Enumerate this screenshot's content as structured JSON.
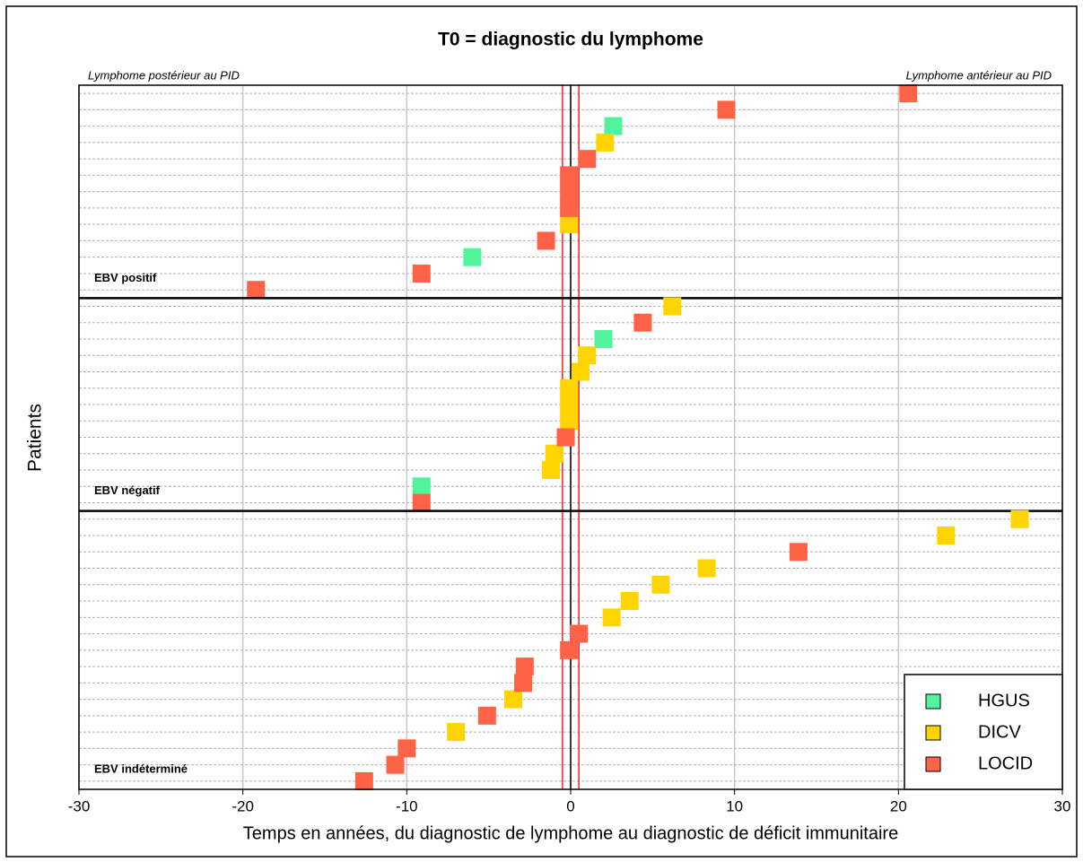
{
  "chart_data": {
    "type": "dot",
    "title": "T0 = diagnostic du lymphome",
    "xlabel": "Temps en années, du diagnostic de lymphome au diagnostic de déficit immunitaire",
    "ylabel": "Patients",
    "annotations": [
      "Lymphome postérieur au PID",
      "Lymphome antérieur au PID"
    ],
    "xlim": [
      -30,
      30
    ],
    "xticks": [
      -30,
      -20,
      -10,
      0,
      10,
      20,
      30
    ],
    "grid": true,
    "legend": "lower right",
    "vlines": [
      {
        "value": 0,
        "color": "#000000"
      },
      {
        "value": -0.5,
        "color": "#e8231e"
      },
      {
        "value": 0.5,
        "color": "#e8231e"
      }
    ],
    "series": [
      {
        "name": "HGUS",
        "color": "#52f49b"
      },
      {
        "name": "DICV",
        "color": "#ffd400"
      },
      {
        "name": "LOCID",
        "color": "#ff6347"
      }
    ],
    "groups": [
      {
        "label": "EBV positif",
        "values": [
          [
            null,
            null,
            2.6,
            null,
            null,
            null,
            null,
            null,
            null,
            null,
            -6.0,
            null,
            null
          ],
          [
            null,
            null,
            null,
            2.1,
            null,
            null,
            null,
            null,
            -0.1,
            null,
            null,
            null,
            null
          ],
          [
            20.6,
            9.5,
            null,
            null,
            1.0,
            -0.1,
            -0.1,
            -0.1,
            null,
            -1.5,
            null,
            -9.1,
            -19.2
          ]
        ]
      },
      {
        "label": "EBV négatif",
        "values": [
          [
            null,
            null,
            2.0,
            null,
            null,
            null,
            null,
            null,
            null,
            null,
            null,
            -9.1,
            null
          ],
          [
            6.2,
            null,
            null,
            1.0,
            0.6,
            -0.1,
            -0.1,
            -0.1,
            null,
            -1.0,
            -1.2,
            null,
            null
          ],
          [
            null,
            4.4,
            null,
            null,
            null,
            null,
            null,
            null,
            -0.3,
            null,
            null,
            null,
            -9.1
          ]
        ]
      },
      {
        "label": "EBV indéterminé",
        "values": [
          [
            null,
            null,
            null,
            null,
            null,
            null,
            null,
            null,
            null,
            null,
            null,
            null,
            null,
            null,
            null,
            null,
            null
          ],
          [
            27.4,
            22.9,
            null,
            8.3,
            5.5,
            3.6,
            2.5,
            null,
            null,
            null,
            null,
            -3.5,
            null,
            -7.0,
            null,
            null,
            null
          ],
          [
            null,
            null,
            13.9,
            null,
            null,
            null,
            null,
            0.5,
            -0.1,
            -2.8,
            -2.9,
            null,
            -5.1,
            null,
            -10.0,
            -10.7,
            -12.6
          ]
        ]
      }
    ]
  }
}
